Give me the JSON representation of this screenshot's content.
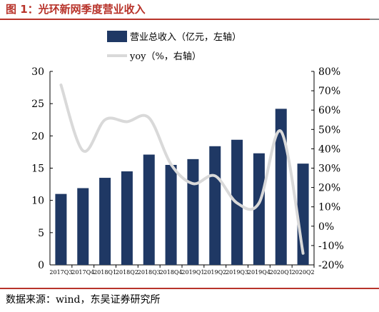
{
  "figure_title": "图 1：光环新网季度营业收入",
  "source_note": "数据来源：wind，东吴证券研究所",
  "colors": {
    "bar": "#1f3864",
    "line": "#d9d9d9",
    "title": "#b8332a"
  },
  "chart_data": {
    "type": "bar",
    "categories": [
      "2017Q3",
      "2017Q4",
      "2018Q1",
      "2018Q2",
      "2018Q3",
      "2018Q4",
      "2019Q1",
      "2019Q2",
      "2019Q3",
      "2019Q4",
      "2020Q1",
      "2020Q2"
    ],
    "series": [
      {
        "name": "营业总收入（亿元，左轴）",
        "type": "bar",
        "axis": "left",
        "values": [
          11.0,
          11.9,
          13.5,
          14.5,
          17.1,
          15.5,
          16.4,
          18.4,
          19.4,
          17.3,
          24.2,
          15.7
        ]
      },
      {
        "name": "yoy（%，右轴）",
        "type": "line",
        "axis": "right",
        "values": [
          73,
          39,
          55,
          54,
          56,
          32,
          22,
          26,
          12,
          12,
          49,
          -14
        ]
      }
    ],
    "y_left": {
      "range": [
        0,
        30
      ],
      "ticks": [
        "0",
        "5",
        "10",
        "15",
        "20",
        "25",
        "30"
      ]
    },
    "y_right": {
      "range": [
        -20,
        80
      ],
      "ticks": [
        "-20%",
        "-10%",
        "0%",
        "10%",
        "20%",
        "30%",
        "40%",
        "50%",
        "60%",
        "70%",
        "80%"
      ]
    },
    "legend": {
      "placement": "top-center"
    },
    "grid": false
  }
}
